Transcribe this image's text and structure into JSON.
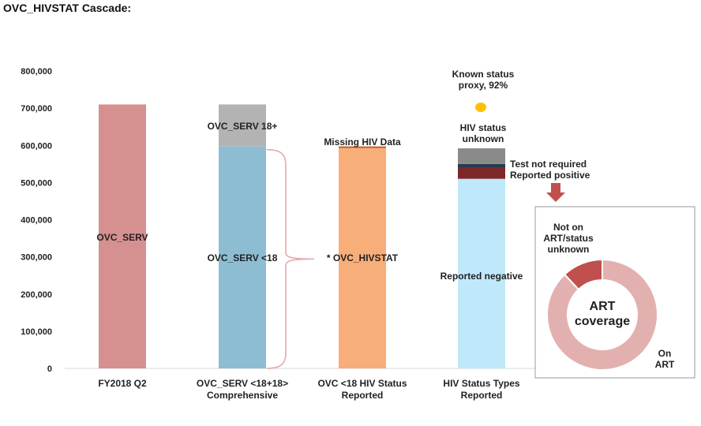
{
  "page": {
    "title": "OVC_HIVSTAT Cascade:"
  },
  "colors": {
    "fy2018": "#d69090",
    "serv18plus": "#b3b3b3",
    "servUnder18": "#8dbdd3",
    "hivstat": "#f8ae78",
    "missing": "#c0561e",
    "negative": "#bfe9fb",
    "positive": "#7d2828",
    "testNotRequired": "#2b3a52",
    "unknown": "#8a8a8a",
    "proxyDot": "#ffc000",
    "arrow": "#c0504d",
    "brace": "#e8a8a8",
    "donutArt": "#e3b0b0",
    "donutNotOnArt": "#c0504d"
  },
  "chart_data": {
    "type": "bar",
    "categories": [
      "FY2018 Q2",
      "OVC_SERV <18+18>\nComprehensive",
      "OVC <18 HIV Status\nReported",
      "HIV Status Types\nReported"
    ],
    "ylim": [
      0,
      800000
    ],
    "yticks": [
      0,
      100000,
      200000,
      300000,
      400000,
      500000,
      600000,
      700000,
      800000
    ],
    "ytick_labels": [
      "0",
      "100,000",
      "200,000",
      "300,000",
      "400,000",
      "500,000",
      "600,000",
      "700,000",
      "800,000"
    ],
    "stacks": [
      {
        "category": 0,
        "segments": [
          {
            "name": "OVC_SERV",
            "value": 710000,
            "color": "fy2018"
          }
        ]
      },
      {
        "category": 1,
        "segments": [
          {
            "name": "OVC_SERV <18",
            "value": 597000,
            "color": "servUnder18"
          },
          {
            "name": "OVC_SERV 18+",
            "value": 113000,
            "color": "serv18plus"
          }
        ]
      },
      {
        "category": 2,
        "segments": [
          {
            "name": "* OVC_HIVSTAT",
            "value": 593000,
            "color": "hivstat"
          },
          {
            "name": "Missing HIV Data",
            "value": 4000,
            "color": "missing"
          }
        ]
      },
      {
        "category": 3,
        "segments": [
          {
            "name": "Reported negative",
            "value": 510000,
            "color": "negative"
          },
          {
            "name": "Reported positive",
            "value": 30000,
            "color": "positive"
          },
          {
            "name": "Test not required",
            "value": 10000,
            "color": "testNotRequired"
          },
          {
            "name": "HIV status unknown",
            "value": 42000,
            "color": "unknown"
          }
        ]
      }
    ],
    "labels": {
      "ovcServ": "OVC_SERV",
      "serv18plus": "OVC_SERV 18+",
      "servUnder18": "OVC_SERV <18",
      "missing": "Missing HIV Data",
      "hivstat": "* OVC_HIVSTAT",
      "unknown": "HIV status\nunknown",
      "testNotRequired": "Test not required",
      "positive": "Reported positive",
      "negative": "Reported negative",
      "proxy": "Known status\nproxy, 92%"
    },
    "known_status_proxy_percent": 92,
    "donut": {
      "type": "pie",
      "center_label": "ART\ncoverage",
      "slices": [
        {
          "name": "On\nART",
          "value": 88,
          "color": "donutArt"
        },
        {
          "name": "Not on\nART/status\nunknown",
          "value": 12,
          "color": "donutNotOnArt"
        }
      ]
    }
  }
}
